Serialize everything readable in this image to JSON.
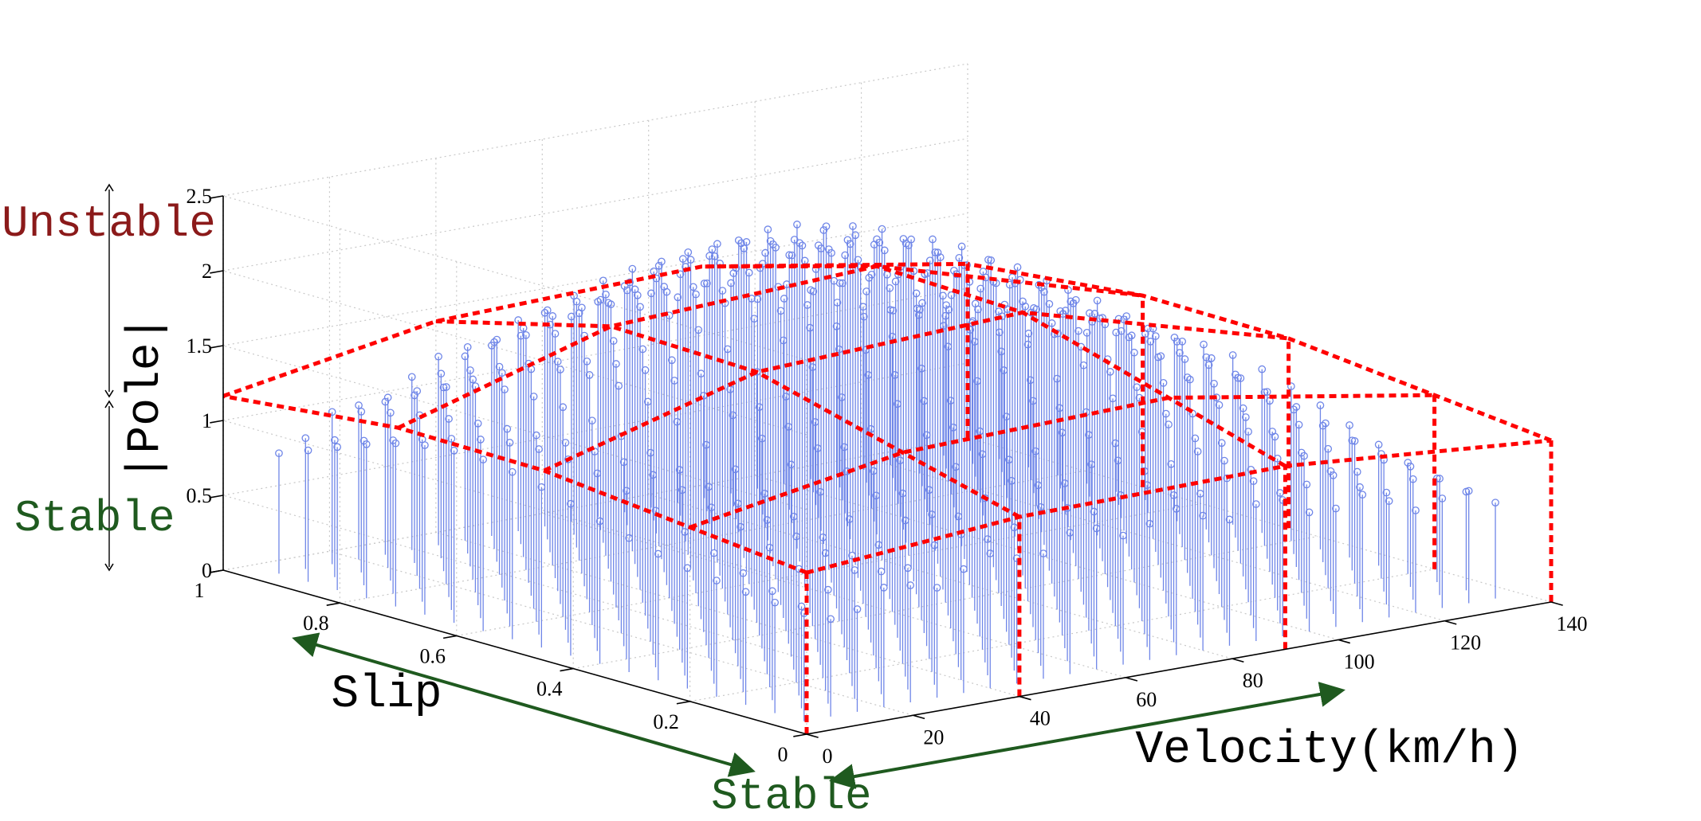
{
  "chart_data": {
    "type": "stem3d",
    "title": "",
    "xlabel": "Velocity(km/h)",
    "ylabel": "Slip",
    "zlabel": "|Pole|",
    "xlim": [
      0,
      140
    ],
    "ylim": [
      0,
      1
    ],
    "zlim": [
      0,
      2.5
    ],
    "x_ticks": [
      "0",
      "20",
      "40",
      "60",
      "80",
      "100",
      "120",
      "140"
    ],
    "y_ticks": [
      "0",
      "0.2",
      "0.4",
      "0.6",
      "0.8",
      "1"
    ],
    "z_ticks": [
      "0",
      "0.5",
      "1",
      "1.5",
      "2",
      "2.5"
    ],
    "grid": true,
    "stem_color": "#6f86e8",
    "bound_color": "#ff0000",
    "arrow_color": "#1f5a1f",
    "stem_samples": {
      "velocity_steps": [
        5,
        10,
        15,
        20,
        25,
        30,
        35,
        40,
        45,
        50,
        55,
        60,
        65,
        70,
        75,
        80,
        85,
        90,
        95,
        100,
        105,
        110,
        115,
        120,
        125,
        130,
        135
      ],
      "slip_steps": [
        0.05,
        0.1,
        0.15,
        0.2,
        0.25,
        0.3,
        0.35,
        0.4,
        0.45,
        0.5,
        0.55,
        0.6,
        0.65,
        0.7,
        0.75,
        0.8,
        0.85,
        0.9,
        0.95
      ],
      "peak_pole": 2.2,
      "peak_velocity": 70,
      "peak_slip": 0.6,
      "edge_pole": 0.55
    },
    "grid_regions": {
      "velocity_breaks": [
        0,
        40,
        90,
        140
      ],
      "slip_breaks": [
        0,
        0.2,
        0.45,
        0.7,
        1
      ],
      "peak_level": 1.9,
      "edge_level": 1.0
    },
    "annotations": {
      "unstable": "Unstable",
      "stable_vertical": "Stable",
      "stable_bottom": "Stable"
    }
  },
  "colors": {
    "unstable": "#8b1a1a",
    "stable": "#1f5a1f"
  }
}
